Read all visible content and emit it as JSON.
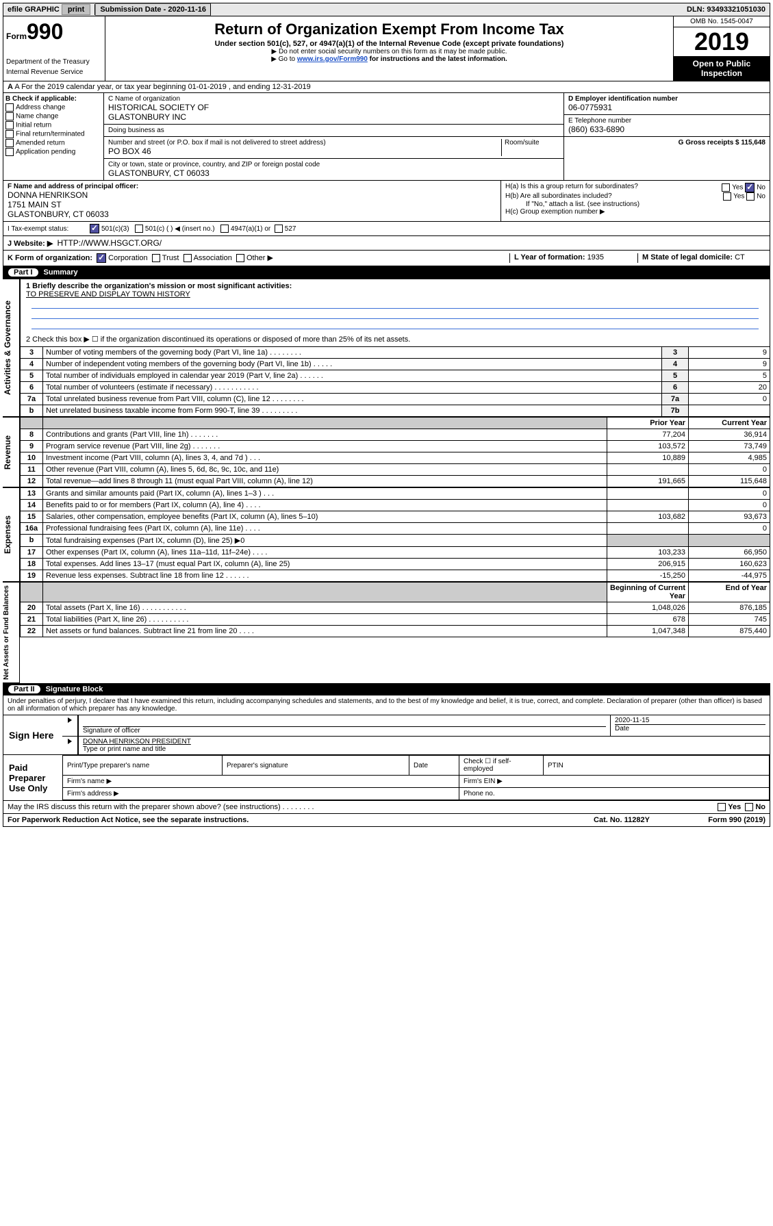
{
  "topbar": {
    "efile": "efile GRAPHIC",
    "print": "print",
    "subdate_lbl": "Submission Date - 2020-11-16",
    "dln": "DLN: 93493321051030"
  },
  "header": {
    "form_small": "Form",
    "form_num": "990",
    "dept1": "Department of the Treasury",
    "dept2": "Internal Revenue Service",
    "title": "Return of Organization Exempt From Income Tax",
    "sub": "Under section 501(c), 527, or 4947(a)(1) of the Internal Revenue Code (except private foundations)",
    "instr1": "▶ Do not enter social security numbers on this form as it may be made public.",
    "instr2_a": "▶ Go to ",
    "instr2_link": "www.irs.gov/Form990",
    "instr2_b": " for instructions and the latest information.",
    "omb": "OMB No. 1545-0047",
    "year": "2019",
    "open": "Open to Public Inspection"
  },
  "rowA": "A For the 2019 calendar year, or tax year beginning 01-01-2019   , and ending 12-31-2019",
  "colB": {
    "lbl": "B Check if applicable:",
    "items": [
      "Address change",
      "Name change",
      "Initial return",
      "Final return/terminated",
      "Amended return",
      "Application pending"
    ]
  },
  "colC": {
    "name_lbl": "C Name of organization",
    "name1": "HISTORICAL SOCIETY OF",
    "name2": "GLASTONBURY INC",
    "dba_lbl": "Doing business as",
    "addr_lbl": "Number and street (or P.O. box if mail is not delivered to street address)",
    "room_lbl": "Room/suite",
    "addr": "PO BOX 46",
    "city_lbl": "City or town, state or province, country, and ZIP or foreign postal code",
    "city": "GLASTONBURY, CT  06033"
  },
  "colD": {
    "d_lbl": "D Employer identification number",
    "d_val": "06-0775931",
    "e_lbl": "E Telephone number",
    "e_val": "(860) 633-6890",
    "g_lbl": "G Gross receipts $ ",
    "g_val": "115,648"
  },
  "rowF": {
    "f_lbl": "F  Name and address of principal officer:",
    "f_name": "DONNA HENRIKSON",
    "f_addr1": "1751 MAIN ST",
    "f_addr2": "GLASTONBURY, CT  06033",
    "ha": "H(a)  Is this a group return for subordinates?",
    "hb": "H(b)  Are all subordinates included?",
    "hb_note": "If \"No,\" attach a list. (see instructions)",
    "hc": "H(c)  Group exemption number ▶",
    "yes": "Yes",
    "no": "No"
  },
  "rowI": {
    "lbl": "I   Tax-exempt status:",
    "a": "501(c)(3)",
    "b": "501(c) (   ) ◀ (insert no.)",
    "c": "4947(a)(1) or",
    "d": "527"
  },
  "rowJ": {
    "lbl": "J   Website: ▶",
    "val": "HTTP://WWW.HSGCT.ORG/"
  },
  "rowK": {
    "lbl": "K Form of organization:",
    "a": "Corporation",
    "b": "Trust",
    "c": "Association",
    "d": "Other ▶",
    "l_lbl": "L Year of formation: ",
    "l_val": "1935",
    "m_lbl": "M State of legal domicile: ",
    "m_val": "CT"
  },
  "part1": {
    "num": "Part I",
    "title": "Summary",
    "side1": "Activities & Governance",
    "side2": "Revenue",
    "side3": "Expenses",
    "side4": "Net Assets or Fund Balances",
    "l1_lbl": "1  Briefly describe the organization's mission or most significant activities:",
    "l1_val": "TO PRESERVE AND DISPLAY TOWN HISTORY",
    "l2": "2   Check this box ▶ ☐  if the organization discontinued its operations or disposed of more than 25% of its net assets.",
    "rows_ag": [
      {
        "n": "3",
        "d": "Number of voting members of the governing body (Part VI, line 1a)  .    .    .    .    .    .    .    .",
        "b": "3",
        "v": "9"
      },
      {
        "n": "4",
        "d": "Number of independent voting members of the governing body (Part VI, line 1b)   .    .    .    .    .",
        "b": "4",
        "v": "9"
      },
      {
        "n": "5",
        "d": "Total number of individuals employed in calendar year 2019 (Part V, line 2a)   .    .    .    .    .    .",
        "b": "5",
        "v": "5"
      },
      {
        "n": "6",
        "d": "Total number of volunteers (estimate if necessary)   .    .    .    .    .    .    .    .    .    .    .",
        "b": "6",
        "v": "20"
      },
      {
        "n": "7a",
        "d": "Total unrelated business revenue from Part VIII, column (C), line 12   .    .    .    .    .    .    .    .",
        "b": "7a",
        "v": "0"
      },
      {
        "n": "b",
        "d": "Net unrelated business taxable income from Form 990-T, line 39   .    .    .    .    .    .    .    .    .",
        "b": "7b",
        "v": ""
      }
    ],
    "th_prior": "Prior Year",
    "th_curr": "Current Year",
    "rows_rev": [
      {
        "n": "8",
        "d": "Contributions and grants (Part VIII, line 1h)   .    .    .    .    .    .    .",
        "p": "77,204",
        "c": "36,914"
      },
      {
        "n": "9",
        "d": "Program service revenue (Part VIII, line 2g)    .    .    .    .    .    .    .",
        "p": "103,572",
        "c": "73,749"
      },
      {
        "n": "10",
        "d": "Investment income (Part VIII, column (A), lines 3, 4, and 7d )   .    .    .",
        "p": "10,889",
        "c": "4,985"
      },
      {
        "n": "11",
        "d": "Other revenue (Part VIII, column (A), lines 5, 6d, 8c, 9c, 10c, and 11e)",
        "p": "",
        "c": "0"
      },
      {
        "n": "12",
        "d": "Total revenue—add lines 8 through 11 (must equal Part VIII, column (A), line 12)",
        "p": "191,665",
        "c": "115,648"
      }
    ],
    "rows_exp": [
      {
        "n": "13",
        "d": "Grants and similar amounts paid (Part IX, column (A), lines 1–3 )   .    .    .",
        "p": "",
        "c": "0"
      },
      {
        "n": "14",
        "d": "Benefits paid to or for members (Part IX, column (A), line 4)   .    .    .    .",
        "p": "",
        "c": "0"
      },
      {
        "n": "15",
        "d": "Salaries, other compensation, employee benefits (Part IX, column (A), lines 5–10)",
        "p": "103,682",
        "c": "93,673"
      },
      {
        "n": "16a",
        "d": "Professional fundraising fees (Part IX, column (A), line 11e)   .    .    .    .",
        "p": "",
        "c": "0"
      },
      {
        "n": "b",
        "d": "Total fundraising expenses (Part IX, column (D), line 25) ▶0",
        "p": "shade",
        "c": "shade"
      },
      {
        "n": "17",
        "d": "Other expenses (Part IX, column (A), lines 11a–11d, 11f–24e)   .    .    .    .",
        "p": "103,233",
        "c": "66,950"
      },
      {
        "n": "18",
        "d": "Total expenses. Add lines 13–17 (must equal Part IX, column (A), line 25)",
        "p": "206,915",
        "c": "160,623"
      },
      {
        "n": "19",
        "d": "Revenue less expenses. Subtract line 18 from line 12   .    .    .    .    .    .",
        "p": "-15,250",
        "c": "-44,975"
      }
    ],
    "th_beg": "Beginning of Current Year",
    "th_end": "End of Year",
    "rows_net": [
      {
        "n": "20",
        "d": "Total assets (Part X, line 16)   .    .    .    .    .    .    .    .    .    .    .",
        "p": "1,048,026",
        "c": "876,185"
      },
      {
        "n": "21",
        "d": "Total liabilities (Part X, line 26)   .    .    .    .    .    .    .    .    .    .",
        "p": "678",
        "c": "745"
      },
      {
        "n": "22",
        "d": "Net assets or fund balances. Subtract line 21 from line 20   .    .    .    .",
        "p": "1,047,348",
        "c": "875,440"
      }
    ]
  },
  "part2": {
    "num": "Part II",
    "title": "Signature Block",
    "perjury": "Under penalties of perjury, I declare that I have examined this return, including accompanying schedules and statements, and to the best of my knowledge and belief, it is true, correct, and complete. Declaration of preparer (other than officer) is based on all information of which preparer has any knowledge.",
    "sign_lbl": "Sign Here",
    "sig_of": "Signature of officer",
    "sig_date": "2020-11-15",
    "sig_date_lbl": "Date",
    "sig_name": "DONNA HENRIKSON  PRESIDENT",
    "sig_name_lbl": "Type or print name and title",
    "paid_lbl": "Paid Preparer Use Only",
    "p_name": "Print/Type preparer's name",
    "p_sig": "Preparer's signature",
    "p_date": "Date",
    "p_check": "Check ☐ if self-employed",
    "p_ptin": "PTIN",
    "p_firm": "Firm's name  ▶",
    "p_ein": "Firm's EIN ▶",
    "p_addr": "Firm's address ▶",
    "p_phone": "Phone no."
  },
  "discuss": {
    "q": "May the IRS discuss this return with the preparer shown above? (see instructions)    .    .    .    .    .    .    .    .",
    "yes": "Yes",
    "no": "No"
  },
  "footer": {
    "a": "For Paperwork Reduction Act Notice, see the separate instructions.",
    "b": "Cat. No. 11282Y",
    "c": "Form 990 (2019)"
  }
}
